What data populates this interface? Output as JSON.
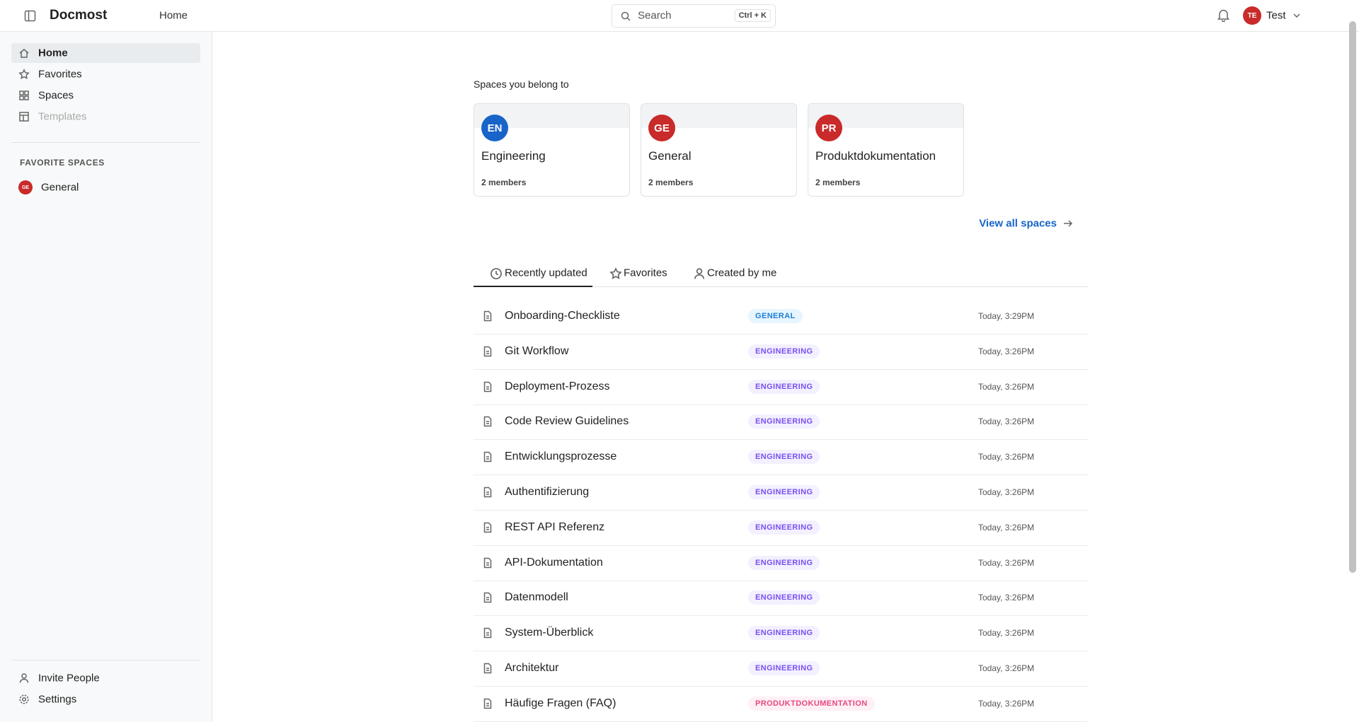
{
  "header": {
    "brand": "Docmost",
    "breadcrumb": "Home",
    "search_placeholder": "Search",
    "search_shortcut": "Ctrl + K",
    "user_initials": "TE",
    "user_name": "Test"
  },
  "sidebar": {
    "nav": [
      "Home",
      "Favorites",
      "Spaces",
      "Templates"
    ],
    "favorite_spaces_title": "FAVORITE SPACES",
    "favorite_spaces": [
      {
        "initials": "GE",
        "name": "General"
      }
    ],
    "footer": [
      "Invite People",
      "Settings"
    ]
  },
  "main": {
    "spaces_title": "Spaces you belong to",
    "spaces": [
      {
        "initials": "EN",
        "name": "Engineering",
        "members": "2 members"
      },
      {
        "initials": "GE",
        "name": "General",
        "members": "2 members"
      },
      {
        "initials": "PR",
        "name": "Produktdokumentation",
        "members": "2 members"
      }
    ],
    "view_all": "View all spaces",
    "tabs": [
      "Recently updated",
      "Favorites",
      "Created by me"
    ],
    "pages": [
      {
        "title": "Onboarding-Checkliste",
        "space": "GENERAL",
        "updated": "Today, 3:29PM"
      },
      {
        "title": "Git Workflow",
        "space": "ENGINEERING",
        "updated": "Today, 3:26PM"
      },
      {
        "title": "Deployment-Prozess",
        "space": "ENGINEERING",
        "updated": "Today, 3:26PM"
      },
      {
        "title": "Code Review Guidelines",
        "space": "ENGINEERING",
        "updated": "Today, 3:26PM"
      },
      {
        "title": "Entwicklungsprozesse",
        "space": "ENGINEERING",
        "updated": "Today, 3:26PM"
      },
      {
        "title": "Authentifizierung",
        "space": "ENGINEERING",
        "updated": "Today, 3:26PM"
      },
      {
        "title": "REST API Referenz",
        "space": "ENGINEERING",
        "updated": "Today, 3:26PM"
      },
      {
        "title": "API-Dokumentation",
        "space": "ENGINEERING",
        "updated": "Today, 3:26PM"
      },
      {
        "title": "Datenmodell",
        "space": "ENGINEERING",
        "updated": "Today, 3:26PM"
      },
      {
        "title": "System-Überblick",
        "space": "ENGINEERING",
        "updated": "Today, 3:26PM"
      },
      {
        "title": "Architektur",
        "space": "ENGINEERING",
        "updated": "Today, 3:26PM"
      },
      {
        "title": "Häufige Fragen (FAQ)",
        "space": "PRODUKTDOKUMENTATION",
        "updated": "Today, 3:26PM"
      }
    ]
  }
}
